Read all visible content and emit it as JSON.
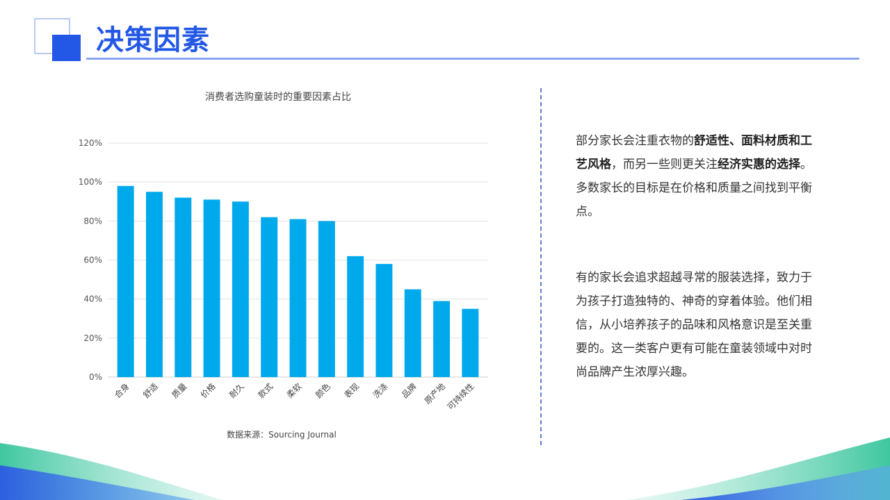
{
  "header": {
    "title": "决策因素"
  },
  "chart_data": {
    "type": "bar",
    "title": "消费者选购童装时的重要因素占比",
    "categories": [
      "合身",
      "舒适",
      "质量",
      "价格",
      "耐久",
      "款式",
      "柔软",
      "颜色",
      "表现",
      "洗涤",
      "品牌",
      "原产地",
      "可持续性"
    ],
    "values": [
      98,
      95,
      92,
      91,
      90,
      82,
      81,
      80,
      62,
      58,
      45,
      39,
      35
    ],
    "ylim": [
      0,
      120
    ],
    "yticks": [
      "0%",
      "20%",
      "40%",
      "60%",
      "80%",
      "100%",
      "120%"
    ],
    "ytick_values": [
      0,
      20,
      40,
      60,
      80,
      100,
      120
    ],
    "grid": true,
    "bar_color": "#00a9eb",
    "source": "数据来源：Sourcing Journal"
  },
  "text": {
    "p1": [
      {
        "t": "部分家长会注重衣物的",
        "b": false
      },
      {
        "t": "舒适性、面料材质和工艺风格",
        "b": true
      },
      {
        "t": "，而另一些则更关注",
        "b": false
      },
      {
        "t": "经济实惠的选择",
        "b": true
      },
      {
        "t": "。多数家长的目标是在价格和质量之间找到平衡点。",
        "b": false
      }
    ],
    "p2": "有的家长会追求超越寻常的服装选择，致力于为孩子打造独特的、神奇的穿着体验。他们相信，从小培养孩子的品味和风格意识是至关重要的。这一类客户更有可能在童装领域中对时尚品牌产生浓厚兴趣。"
  },
  "colors": {
    "accent": "#2358e6",
    "bar": "#00a9eb",
    "divider": "#5b7fc9"
  }
}
